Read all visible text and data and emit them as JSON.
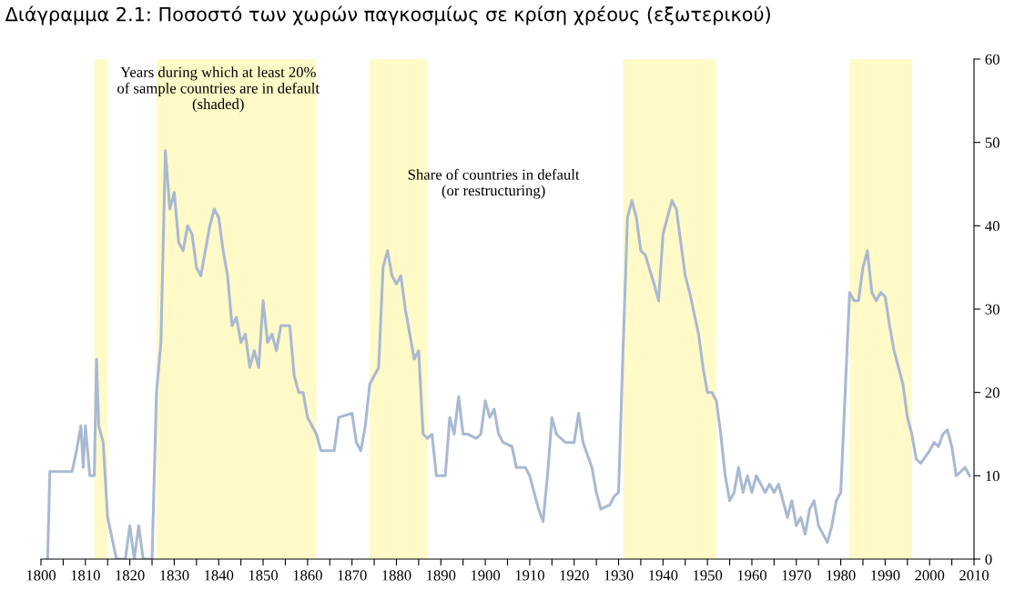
{
  "chart_data": {
    "type": "line",
    "title": "Διάγραμμα 2.1: Ποσοστό των χωρών παγκοσμίως σε κρίση χρέους (εξωτερικού)",
    "annotations": [
      "Years during which at least 20%\nof sample countries are in default\n(shaded)",
      "Share of countries in default\n(or restructuring)"
    ],
    "x": [
      1801.5,
      1802,
      1807,
      1808,
      1809,
      1809.5,
      1810,
      1811,
      1812,
      1812.5,
      1813,
      1814,
      1815,
      1817,
      1819,
      1820,
      1821,
      1822,
      1823,
      1825,
      1826,
      1827,
      1828,
      1829,
      1830,
      1831,
      1832,
      1833,
      1834,
      1835,
      1836,
      1837,
      1838,
      1839,
      1840,
      1841,
      1842,
      1843,
      1844,
      1845,
      1846,
      1847,
      1848,
      1849,
      1850,
      1851,
      1852,
      1853,
      1854,
      1855,
      1856,
      1857,
      1858,
      1859,
      1860,
      1862,
      1863,
      1866,
      1867,
      1870,
      1871,
      1872,
      1873,
      1874,
      1876,
      1877,
      1878,
      1879,
      1880,
      1881,
      1882,
      1883,
      1884,
      1885,
      1886,
      1887,
      1888,
      1889,
      1891,
      1892,
      1893,
      1894,
      1895,
      1896,
      1898,
      1899,
      1900,
      1901,
      1902,
      1903,
      1904,
      1906,
      1907,
      1909,
      1910,
      1912,
      1913,
      1914,
      1915,
      1916,
      1918,
      1920,
      1921,
      1922,
      1924,
      1925,
      1926,
      1928,
      1929,
      1930,
      1931,
      1932,
      1933,
      1934,
      1935,
      1936,
      1938,
      1939,
      1940,
      1941,
      1942,
      1943,
      1944,
      1945,
      1946,
      1948,
      1949,
      1950,
      1951,
      1952,
      1953,
      1954,
      1955,
      1956,
      1957,
      1958,
      1959,
      1960,
      1961,
      1962,
      1963,
      1964,
      1965,
      1966,
      1967,
      1968,
      1969,
      1970,
      1971,
      1972,
      1973,
      1974,
      1975,
      1976,
      1977,
      1978,
      1979,
      1980,
      1981,
      1982,
      1983,
      1984,
      1985,
      1986,
      1987,
      1988,
      1989,
      1990,
      1991,
      1992,
      1993,
      1994,
      1995,
      1996,
      1997,
      1998,
      2000,
      2001,
      2002,
      2003,
      2004,
      2005,
      2006,
      2007,
      2008,
      2009
    ],
    "series": [
      {
        "color": "#a9b9d2",
        "values": [
          0,
          10.5,
          10.5,
          13,
          16,
          11,
          16,
          10,
          10,
          24,
          16,
          14,
          5,
          0,
          0,
          4,
          0,
          4,
          0,
          0,
          20,
          26,
          49,
          42,
          44,
          38,
          37,
          40,
          39,
          35,
          34,
          37,
          40,
          42,
          41,
          37,
          34,
          28,
          29,
          26,
          27,
          23,
          25,
          23,
          31,
          26,
          27,
          25,
          28,
          28,
          28,
          22,
          20,
          20,
          17,
          15,
          13,
          13,
          17,
          17.5,
          14,
          13,
          16,
          21,
          23,
          35,
          37,
          34,
          33,
          34,
          30,
          27,
          24,
          25,
          15,
          14.5,
          15,
          10,
          10,
          17,
          15,
          19.5,
          15,
          15,
          14.5,
          15,
          19,
          17,
          18,
          15,
          14,
          13.5,
          11,
          11,
          10,
          6,
          4.5,
          10,
          17,
          15,
          14,
          14,
          17.5,
          14,
          11,
          8,
          6,
          6.5,
          7.5,
          8,
          25,
          41,
          43,
          41,
          37,
          36.5,
          33,
          31,
          39,
          41,
          43,
          42,
          38,
          34,
          32,
          27,
          23,
          20,
          20,
          19,
          15,
          10,
          7,
          8,
          11,
          8,
          10,
          8,
          10,
          9,
          8,
          9,
          8,
          9,
          7,
          5,
          7,
          4,
          5,
          3,
          6,
          7,
          4,
          3,
          2,
          4,
          7,
          8,
          20,
          32,
          31,
          31,
          35,
          37,
          32,
          31,
          32,
          31.5,
          28,
          25,
          23,
          21,
          17,
          15,
          12,
          11.5,
          13,
          14,
          13.5,
          15,
          15.5,
          13.5,
          10,
          10.5,
          11,
          10
        ]
      }
    ],
    "xlim": [
      1800,
      2010
    ],
    "xticks": [
      1800,
      {
        "value": 1805,
        "label": null
      },
      1810,
      {
        "value": 1815,
        "label": null
      },
      1820,
      {
        "value": 1825,
        "label": null
      },
      1830,
      {
        "value": 1835,
        "label": null
      },
      1840,
      {
        "value": 1845,
        "label": null
      },
      1850,
      {
        "value": 1855,
        "label": null
      },
      1860,
      {
        "value": 1865,
        "label": null
      },
      1870,
      {
        "value": 1875,
        "label": null
      },
      1880,
      {
        "value": 1885,
        "label": null
      },
      1890,
      {
        "value": 1895,
        "label": null
      },
      1900,
      {
        "value": 1905,
        "label": null
      },
      1910,
      {
        "value": 1915,
        "label": null
      },
      1920,
      {
        "value": 1925,
        "label": null
      },
      1930,
      {
        "value": 1935,
        "label": null
      },
      1940,
      {
        "value": 1945,
        "label": null
      },
      1950,
      {
        "value": 1955,
        "label": null
      },
      1960,
      {
        "value": 1965,
        "label": null
      },
      1970,
      {
        "value": 1975,
        "label": null
      },
      1980,
      {
        "value": 1985,
        "label": null
      },
      1990,
      {
        "value": 1995,
        "label": null
      },
      2000,
      {
        "value": 2005,
        "label": null
      },
      2010
    ],
    "ylim": [
      0,
      60
    ],
    "yticks": [
      0,
      10,
      20,
      30,
      40,
      50,
      60
    ],
    "bands": [
      {
        "axis": "x",
        "from": 1812,
        "to": 1815,
        "color": "#fffac8"
      },
      {
        "axis": "x",
        "from": 1826,
        "to": 1862,
        "color": "#fffac8"
      },
      {
        "axis": "x",
        "from": 1874,
        "to": 1887,
        "color": "#fffac8"
      },
      {
        "axis": "x",
        "from": 1931,
        "to": 1952,
        "color": "#fffac8"
      },
      {
        "axis": "x",
        "from": 1982,
        "to": 1996,
        "color": "#fffac8"
      }
    ],
    "grid": false,
    "legend": false
  }
}
